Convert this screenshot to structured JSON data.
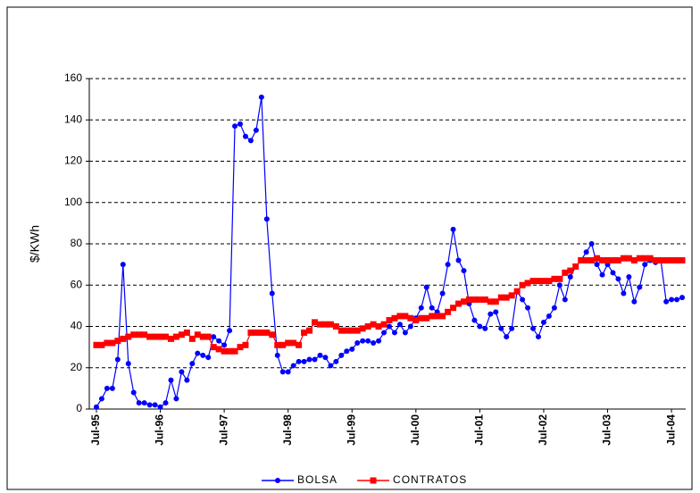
{
  "chart_data": {
    "type": "line",
    "y_label": "$/KWh",
    "categories": [
      "Jul-95",
      null,
      null,
      null,
      null,
      null,
      null,
      null,
      null,
      null,
      null,
      null,
      "Jul-96",
      null,
      null,
      null,
      null,
      null,
      null,
      null,
      null,
      null,
      null,
      null,
      "Jul-97",
      null,
      null,
      null,
      null,
      null,
      null,
      null,
      null,
      null,
      null,
      null,
      "Jul-98",
      null,
      null,
      null,
      null,
      null,
      null,
      null,
      null,
      null,
      null,
      null,
      "Jul-99",
      null,
      null,
      null,
      null,
      null,
      null,
      null,
      null,
      null,
      null,
      null,
      "Jul-00",
      null,
      null,
      null,
      null,
      null,
      null,
      null,
      null,
      null,
      null,
      null,
      "Jul-01",
      null,
      null,
      null,
      null,
      null,
      null,
      null,
      null,
      null,
      null,
      null,
      "Jul-02",
      null,
      null,
      null,
      null,
      null,
      null,
      null,
      null,
      null,
      null,
      null,
      "Jul-03",
      null,
      null,
      null,
      null,
      null,
      null,
      null,
      null,
      null,
      null,
      null,
      "Jul-04",
      null,
      null
    ],
    "series": [
      {
        "name": "BOLSA",
        "color": "#0000ff",
        "marker": "circle",
        "values": [
          1,
          5,
          10,
          10,
          24,
          70,
          22,
          8,
          3,
          3,
          2,
          2,
          1,
          3,
          14,
          5,
          18,
          14,
          22,
          27,
          26,
          25,
          35,
          33,
          31,
          38,
          137,
          138,
          132,
          130,
          135,
          151,
          92,
          56,
          26,
          18,
          18,
          21,
          23,
          23,
          24,
          24,
          26,
          25,
          21,
          23,
          26,
          28,
          29,
          32,
          33,
          33,
          32,
          33,
          37,
          40,
          37,
          41,
          37,
          40,
          44,
          49,
          59,
          49,
          47,
          56,
          70,
          87,
          72,
          67,
          51,
          43,
          40,
          39,
          46,
          47,
          39,
          35,
          39,
          57,
          53,
          49,
          39,
          35,
          42,
          45,
          49,
          60,
          53,
          64,
          69,
          72,
          76,
          80,
          70,
          65,
          70,
          66,
          63,
          56,
          64,
          52,
          59,
          70,
          72,
          71,
          72,
          52,
          53,
          53,
          54
        ]
      },
      {
        "name": "CONTRATOS",
        "color": "#ff0000",
        "marker": "square",
        "values": [
          31,
          31,
          32,
          32,
          33,
          34,
          35,
          36,
          36,
          36,
          35,
          35,
          35,
          35,
          34,
          35,
          36,
          37,
          34,
          36,
          35,
          35,
          30,
          29,
          28,
          28,
          28,
          30,
          31,
          37,
          37,
          37,
          37,
          36,
          31,
          31,
          32,
          32,
          31,
          37,
          38,
          42,
          41,
          41,
          41,
          40,
          38,
          38,
          38,
          38,
          39,
          40,
          41,
          40,
          41,
          43,
          44,
          45,
          45,
          44,
          43,
          44,
          44,
          45,
          45,
          45,
          47,
          49,
          51,
          52,
          53,
          53,
          53,
          53,
          52,
          52,
          54,
          54,
          55,
          57,
          60,
          61,
          62,
          62,
          62,
          62,
          63,
          63,
          66,
          67,
          69,
          72,
          72,
          72,
          73,
          72,
          72,
          72,
          72,
          73,
          73,
          72,
          73,
          73,
          73,
          72,
          72,
          72,
          72,
          72,
          72
        ]
      }
    ],
    "ylim": [
      0,
      160
    ],
    "yticks": [
      0,
      20,
      40,
      60,
      80,
      100,
      120,
      140,
      160
    ],
    "grid": true,
    "legend": "bottom"
  }
}
